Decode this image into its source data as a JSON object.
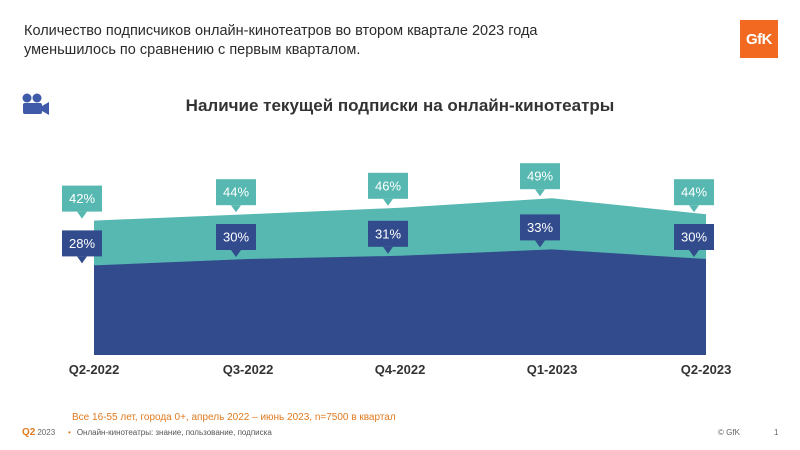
{
  "header": {
    "headline_line1": "Количество подписчиков онлайн-кинотеатров во втором квартале 2023 года",
    "headline_line2": "уменьшилось по сравнению с первым кварталом.",
    "logo_text": "GfK"
  },
  "icon": {
    "name": "movie-camera-icon"
  },
  "colors": {
    "awareness": "#56b8b0",
    "subscription": "#324b8c",
    "brand": "#f26a21",
    "note": "#e07a1f"
  },
  "chart_data": {
    "type": "area",
    "title": "Наличие текущей подписки на онлайн-кинотеатры",
    "categories": [
      "Q2-2022",
      "Q3-2022",
      "Q4-2022",
      "Q1-2023",
      "Q2-2023"
    ],
    "series": [
      {
        "name": "upper",
        "values": [
          42,
          44,
          46,
          49,
          44
        ],
        "labels": [
          "42%",
          "44%",
          "46%",
          "49%",
          "44%"
        ]
      },
      {
        "name": "lower",
        "values": [
          28,
          30,
          31,
          33,
          30
        ],
        "labels": [
          "28%",
          "30%",
          "31%",
          "33%",
          "30%"
        ]
      }
    ],
    "ylim": [
      0,
      100
    ]
  },
  "footer": {
    "note": "Все 16-55 лет, города 0+, апрель 2022 – июнь 2023, n=7500 в квартал",
    "period_q": "Q2",
    "period_year": "2023",
    "bullet": "Онлайн-кинотеатры: знание, пользование, подписка",
    "copyright": "© GfK",
    "page_number": "1"
  }
}
